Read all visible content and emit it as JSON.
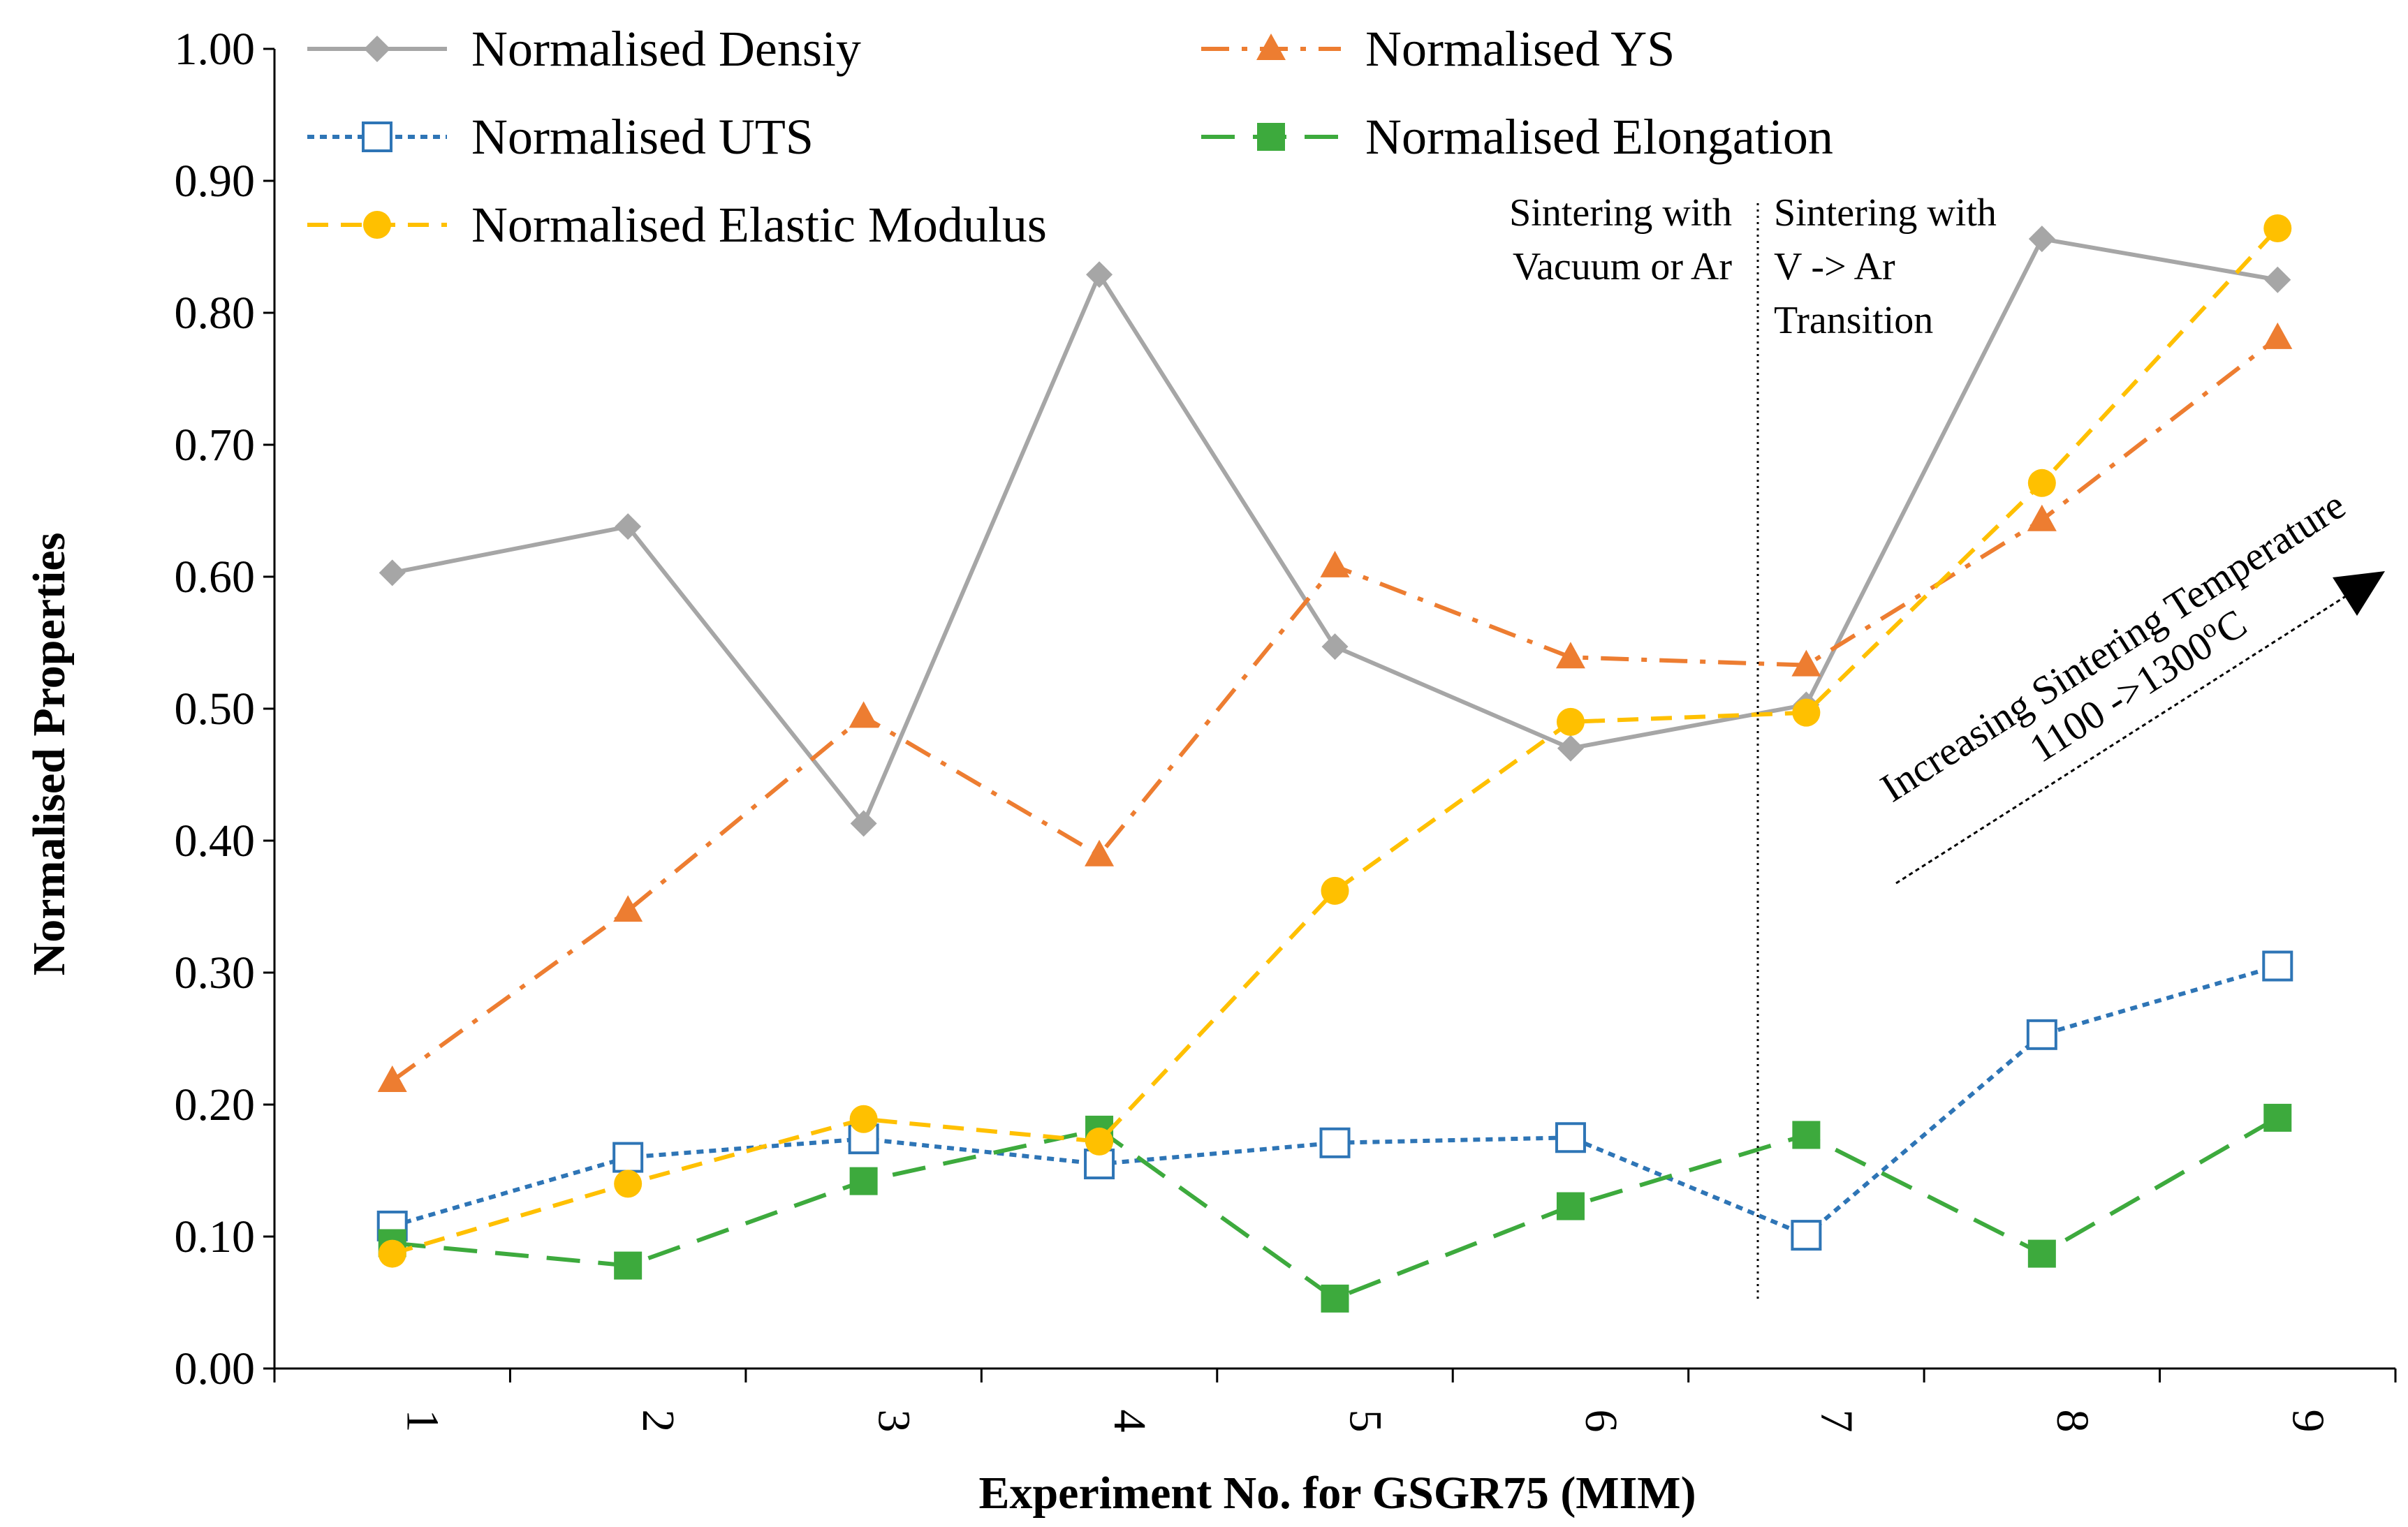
{
  "chart_data": {
    "type": "line",
    "xlabel": "Experiment No. for GSGR75 (MIM)",
    "ylabel": "Normalised Properties",
    "ylim": [
      0,
      1
    ],
    "y_ticks": [
      "0.00",
      "0.10",
      "0.20",
      "0.30",
      "0.40",
      "0.50",
      "0.60",
      "0.70",
      "0.80",
      "0.90",
      "1.00"
    ],
    "categories": [
      "1",
      "2",
      "3",
      "4",
      "5",
      "6",
      "7",
      "8",
      "9"
    ],
    "series": [
      {
        "name": "Normalised Densiy",
        "values": [
          0.603,
          0.638,
          0.413,
          0.829,
          0.547,
          0.47,
          0.503,
          0.856,
          0.825
        ],
        "color": "#a6a6a6",
        "marker": "diamond",
        "dash": "solid"
      },
      {
        "name": "Normalised YS",
        "values": [
          0.218,
          0.347,
          0.494,
          0.389,
          0.608,
          0.539,
          0.533,
          0.643,
          0.781
        ],
        "color": "#ed7d31",
        "marker": "triangle",
        "dash": "dashdot"
      },
      {
        "name": "Normalised UTS",
        "values": [
          0.108,
          0.16,
          0.174,
          0.155,
          0.171,
          0.175,
          0.101,
          0.253,
          0.305
        ],
        "color": "#2e75b6",
        "marker": "open-square",
        "dash": "dotted"
      },
      {
        "name": "Normalised Elongation",
        "values": [
          0.095,
          0.078,
          0.142,
          0.181,
          0.053,
          0.123,
          0.177,
          0.087,
          0.19
        ],
        "color": "#3daa3d",
        "marker": "square",
        "dash": "longdash"
      },
      {
        "name": "Normalised Elastic Modulus",
        "values": [
          0.087,
          0.14,
          0.189,
          0.172,
          0.362,
          0.49,
          0.497,
          0.671,
          0.864
        ],
        "color": "#ffc000",
        "marker": "circle",
        "dash": "dashed"
      }
    ],
    "annotations": {
      "left_region": [
        "Sintering with",
        "Vacuum or Ar"
      ],
      "right_region": [
        "Sintering with",
        "V -> Ar",
        "Transition"
      ],
      "arrow_line1": "Increasing Sintering Temperature",
      "arrow_line2": "1100 ->1300",
      "arrow_line2_sup": "o",
      "arrow_line2_end": "C"
    },
    "legend_position": "top"
  }
}
